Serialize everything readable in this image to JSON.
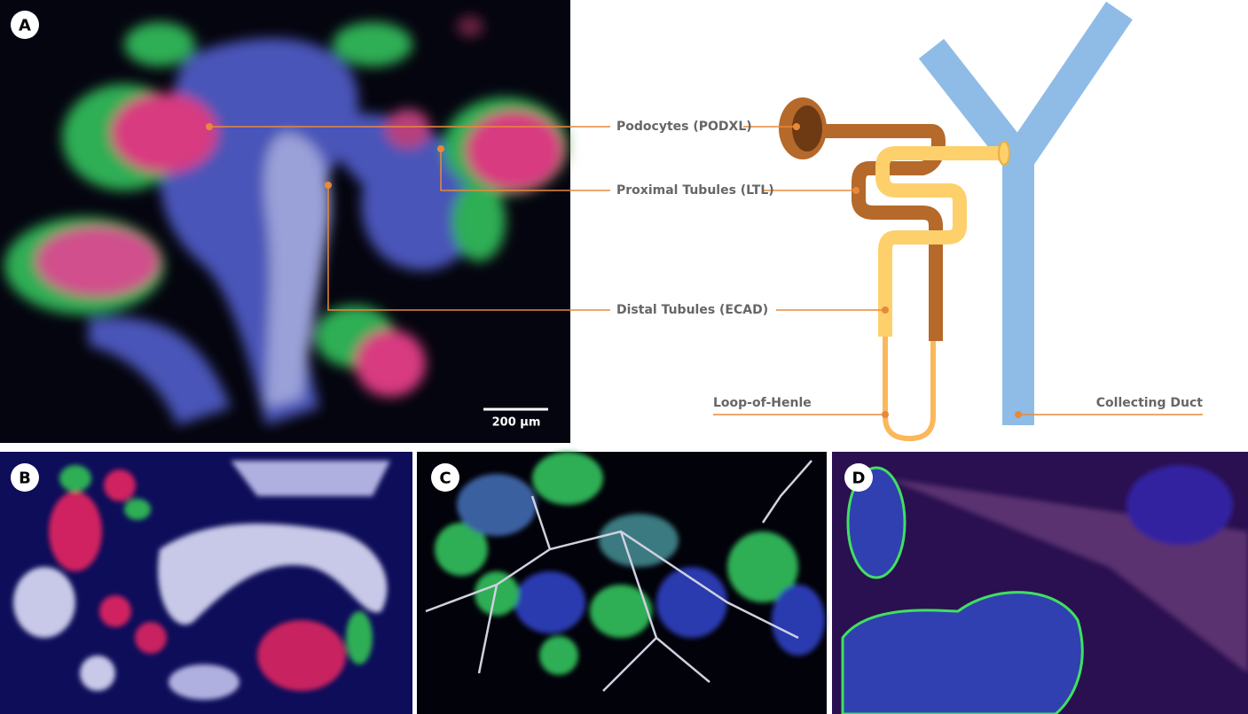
{
  "panels": {
    "a": {
      "label": "A",
      "scale_bar": "200 µm"
    },
    "b": {
      "label": "B"
    },
    "c": {
      "label": "C"
    },
    "d": {
      "label": "D"
    }
  },
  "annotations": {
    "podocytes": "Podocytes (PODXL)",
    "proximal": "Proximal Tubules (LTL)",
    "distal": "Distal Tubules (ECAD)",
    "loop": "Loop-of-Henle",
    "collecting": "Collecting Duct"
  }
}
